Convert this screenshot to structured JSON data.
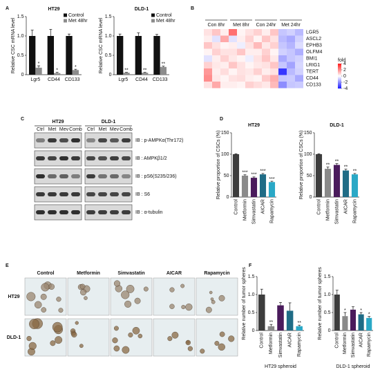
{
  "panel_labels": [
    "A",
    "B",
    "C",
    "D",
    "E",
    "F"
  ],
  "chart_data": [
    {
      "type": "bar",
      "title": "HT29",
      "ylabel": "Relative CSC mRNA level",
      "categories": [
        "Lgr5",
        "CD44",
        "CD133"
      ],
      "series": [
        {
          "name": "Control",
          "color": "#111111",
          "values": [
            1,
            1,
            1
          ],
          "errors": [
            0.15,
            0.17,
            0.05
          ]
        },
        {
          "name": "Met 48hr",
          "color": "#8c8c8c",
          "values": [
            0.18,
            0.04,
            0.12
          ],
          "errors": [
            0.05,
            0.02,
            0.02
          ],
          "annotations": [
            "*",
            "*",
            "*"
          ]
        }
      ],
      "ylim": [
        0,
        1.5
      ],
      "yticks": [
        0,
        0.5,
        {
          "value": 1,
          "label": "1.0"
        },
        1.5
      ],
      "legend": "upper right"
    },
    {
      "type": "bar",
      "title": "DLD-1",
      "ylabel": "Relative CSC mRNA level",
      "categories": [
        "Lgr5",
        "CD44",
        "CD133"
      ],
      "series": [
        {
          "name": "Control",
          "color": "#111111",
          "values": [
            1,
            1,
            1
          ],
          "errors": [
            0.05,
            0.08,
            0.04
          ]
        },
        {
          "name": "Met 48hr",
          "color": "#8c8c8c",
          "values": [
            0.05,
            0.05,
            0.2
          ],
          "errors": [
            0.01,
            0.01,
            0.02
          ],
          "annotations": [
            "**",
            "**",
            "**"
          ]
        }
      ],
      "ylim": [
        0,
        1.5
      ],
      "yticks": [
        0,
        0.5,
        {
          "value": 1,
          "label": "1.0"
        },
        1.5
      ],
      "legend": "upper right"
    },
    {
      "type": "heatmap",
      "groups": [
        "Con 8hr",
        "Met 8hr",
        "Con 24hr",
        "Met 24hr"
      ],
      "rows": [
        "LGR5",
        "ASCL2",
        "EPHB3",
        "OLFM4",
        "BMI1",
        "LRIG1",
        "TERT",
        "CD44",
        "CD133"
      ],
      "values": [
        [
          0.5,
          1,
          0.3,
          2.5,
          0.2,
          0.5,
          0.8,
          0.3,
          1,
          -1,
          -0.8,
          -1.2
        ],
        [
          0.3,
          -0.5,
          1.5,
          -0.5,
          0.3,
          0.8,
          0.2,
          1,
          0.5,
          -1.2,
          -1.5,
          -0.8
        ],
        [
          1,
          0.5,
          0.2,
          0.3,
          -0.3,
          0.5,
          1.2,
          0.4,
          0.8,
          -1,
          -1.3,
          -0.6
        ],
        [
          0.2,
          0.8,
          0.5,
          0.5,
          1,
          0.3,
          0.3,
          0.8,
          0.2,
          -0.8,
          -1,
          -1.4
        ],
        [
          -0.5,
          0.3,
          0.8,
          0.4,
          0.2,
          -0.3,
          0.5,
          1,
          0.4,
          -1.5,
          -1,
          -0.8
        ],
        [
          0.8,
          0.4,
          0.3,
          1,
          0.5,
          0.2,
          0.4,
          0.5,
          1,
          -1,
          -1.6,
          -0.7
        ],
        [
          1.8,
          0.3,
          0.6,
          0.2,
          0.5,
          0.4,
          0.8,
          0.3,
          0.5,
          -3.5,
          -1.2,
          -0.8
        ],
        [
          2,
          0.4,
          0.2,
          0.5,
          0.6,
          0.3,
          0.2,
          0.9,
          1.4,
          -1,
          -0.9,
          -1.5
        ],
        [
          0.5,
          1.5,
          0.3,
          0.3,
          0.2,
          0.8,
          0.6,
          0.4,
          1.2,
          -2,
          -1,
          -0.9
        ]
      ],
      "zlim": [
        -4,
        4
      ],
      "colors": [
        "#1a1aff",
        "#ffffff",
        "#ff1a1a"
      ],
      "colorbar_label": "fold",
      "colorbar_ticks": [
        4,
        2,
        0,
        -2,
        -4
      ]
    },
    {
      "type": "bar",
      "title": "HT29",
      "ylabel": "Relative proportion of CSCs (%)",
      "categories": [
        "Control",
        "Metformin",
        "Simvastatin",
        "AICAR",
        "Rapamycin"
      ],
      "values": [
        100,
        50,
        45,
        53,
        35
      ],
      "errors": [
        1,
        2,
        2,
        2,
        2
      ],
      "colors": [
        "#3d3d3d",
        "#8a8a8a",
        "#4a1b5c",
        "#1f6c86",
        "#2aa8c6"
      ],
      "annotations": [
        null,
        "***",
        "***",
        "***",
        "***"
      ],
      "ylim": [
        0,
        150
      ],
      "yticks": [
        0,
        50,
        100,
        150
      ]
    },
    {
      "type": "bar",
      "title": "DLD-1",
      "ylabel": "Relative proportion of CSCs (%)",
      "categories": [
        "Control",
        "Metformin",
        "Simvastatin",
        "AICAR",
        "Rapamycin"
      ],
      "values": [
        100,
        66,
        75,
        62,
        53
      ],
      "errors": [
        1,
        4,
        3,
        3,
        2
      ],
      "colors": [
        "#3d3d3d",
        "#8a8a8a",
        "#4a1b5c",
        "#1f6c86",
        "#2aa8c6"
      ],
      "annotations": [
        null,
        "**",
        "**",
        "**",
        "**"
      ],
      "ylim": [
        0,
        150
      ],
      "yticks": [
        0,
        50,
        100,
        150
      ]
    },
    {
      "type": "bar",
      "xlabel": "HT29 spheroid",
      "ylabel": "Relative number of tumor spheres",
      "categories": [
        "Control",
        "Metformin",
        "Simvastatin",
        "AICAR",
        "Rapamycin"
      ],
      "values": [
        1,
        0.12,
        0.7,
        0.55,
        0.12
      ],
      "errors": [
        0.15,
        0.05,
        0.08,
        0.22,
        0.03
      ],
      "colors": [
        "#3d3d3d",
        "#8a8a8a",
        "#4a1b5c",
        "#1f6c86",
        "#2aa8c6"
      ],
      "annotations": [
        null,
        "**",
        null,
        null,
        "**"
      ],
      "ylim": [
        0,
        1.5
      ],
      "yticks": [
        0,
        0.5,
        {
          "value": 1,
          "label": "1.0"
        },
        1.5
      ]
    },
    {
      "type": "bar",
      "xlabel": "DLD-1 spheroid",
      "ylabel": "Relative number of tumor spheres",
      "categories": [
        "Control",
        "Metformin",
        "Simvastatin",
        "AICAR",
        "Rapamycin"
      ],
      "values": [
        1,
        0.4,
        0.58,
        0.45,
        0.35
      ],
      "errors": [
        0.12,
        0.1,
        0.08,
        0.05,
        0.04
      ],
      "colors": [
        "#3d3d3d",
        "#8a8a8a",
        "#4a1b5c",
        "#1f6c86",
        "#2aa8c6"
      ],
      "annotations": [
        null,
        "*",
        null,
        "*",
        "*"
      ],
      "ylim": [
        0,
        1.5
      ],
      "yticks": [
        0,
        0.5,
        {
          "value": 1,
          "label": "1.0"
        },
        1.5
      ]
    }
  ],
  "blot": {
    "groups": [
      {
        "name": "HT29",
        "lanes": [
          "Ctrl",
          "Met",
          "Mev",
          "Comb"
        ]
      },
      {
        "name": "DLD-1",
        "lanes": [
          "Ctrl",
          "Met",
          "Mev",
          "Comb"
        ]
      }
    ],
    "probes": [
      "IB : p-AMPKα(Thr172)",
      "IB : AMPKβ1/2",
      "IB : pS6(S235/236)",
      "IB : S6",
      "IB : α-tubulin"
    ]
  },
  "micrographs": {
    "columns": [
      "Control",
      "Metformin",
      "Simvastatin",
      "AICAR",
      "Rapamycin"
    ],
    "rows": [
      "HT29",
      "DLD-1"
    ]
  }
}
